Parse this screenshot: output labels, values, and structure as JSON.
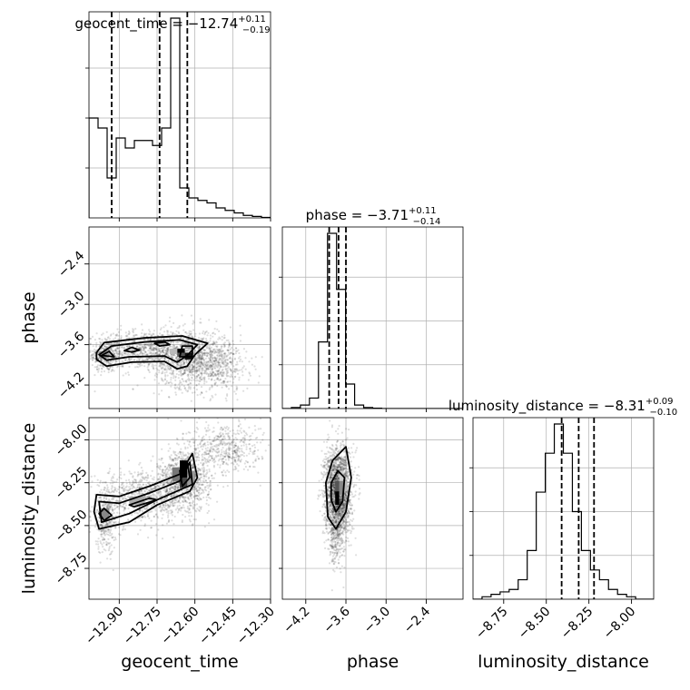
{
  "chart_data": {
    "type": "corner",
    "parameters": [
      "geocent_time",
      "phase",
      "luminosity_distance"
    ],
    "grid": true,
    "titles": [
      {
        "param": "geocent_time",
        "prefix": "geocent_time = ",
        "median": "−12.74",
        "plus": "+0.11",
        "minus": "−0.19"
      },
      {
        "param": "phase",
        "prefix": "phase = ",
        "median": "−3.71",
        "plus": "+0.11",
        "minus": "−0.14"
      },
      {
        "param": "luminosity_distance",
        "prefix": "luminosity_distance = ",
        "median": "−8.31",
        "plus": "+0.09",
        "minus": "−0.10"
      }
    ],
    "axes": {
      "geocent_time": {
        "range": [
          -13.02,
          -12.3
        ],
        "ticks": [
          -12.9,
          -12.75,
          -12.6,
          -12.45,
          -12.3
        ],
        "tick_labels": [
          "−12.90",
          "−12.75",
          "−12.60",
          "−12.45",
          "−12.30"
        ]
      },
      "phase": {
        "range": [
          -4.55,
          -1.85
        ],
        "ticks": [
          -4.2,
          -3.6,
          -3.0,
          -2.4
        ],
        "tick_labels": [
          "−4.2",
          "−3.6",
          "−3.0",
          "−2.4"
        ]
      },
      "luminosity_distance": {
        "range": [
          -8.93,
          -7.87
        ],
        "ticks": [
          -8.75,
          -8.5,
          -8.25,
          -8.0
        ],
        "tick_labels": [
          "−8.75",
          "−8.50",
          "−8.25",
          "−8.00"
        ]
      }
    },
    "histograms": {
      "geocent_time": {
        "edges": [
          -13.02,
          -12.984,
          -12.948,
          -12.912,
          -12.876,
          -12.84,
          -12.804,
          -12.768,
          -12.732,
          -12.696,
          -12.66,
          -12.624,
          -12.588,
          -12.552,
          -12.516,
          -12.48,
          -12.444,
          -12.408,
          -12.372,
          -12.336,
          -12.3
        ],
        "counts": [
          20,
          18,
          8,
          16,
          14,
          15.5,
          15.5,
          14.5,
          18,
          40,
          6,
          4,
          3.5,
          3,
          2,
          1.5,
          1,
          0.5,
          0.3,
          0.1
        ],
        "quantiles": [
          -12.93,
          -12.74,
          -12.63
        ]
      },
      "phase": {
        "edges": [
          -4.55,
          -4.415,
          -4.28,
          -4.145,
          -4.01,
          -3.875,
          -3.74,
          -3.605,
          -3.47,
          -3.335,
          -3.2,
          -3.065,
          -2.93,
          -2.795,
          -2.66,
          -2.525,
          -2.39,
          -2.255,
          -2.12,
          -1.985,
          -1.85
        ],
        "counts": [
          0,
          0.3,
          1,
          3,
          19,
          50,
          34,
          7,
          1,
          0.3,
          0.1,
          0,
          0,
          0,
          0,
          0,
          0,
          0,
          0,
          0
        ],
        "quantiles": [
          -3.85,
          -3.71,
          -3.6
        ]
      },
      "luminosity_distance": {
        "edges": [
          -8.93,
          -8.877,
          -8.824,
          -8.771,
          -8.718,
          -8.665,
          -8.612,
          -8.559,
          -8.506,
          -8.453,
          -8.4,
          -8.347,
          -8.294,
          -8.241,
          -8.188,
          -8.135,
          -8.082,
          -8.029,
          -7.976,
          -7.923,
          -7.87
        ],
        "counts": [
          0,
          0.5,
          1,
          1.5,
          2,
          4,
          10,
          22,
          30,
          36,
          30,
          18,
          10,
          6,
          4,
          2,
          1,
          0.5,
          0,
          0
        ],
        "quantiles": [
          -8.41,
          -8.31,
          -8.22
        ]
      }
    },
    "scatter_clouds": {
      "geocent_time_vs_phase": [
        {
          "cx": -12.95,
          "cy": -3.75,
          "sx": 0.03,
          "sy": 0.13,
          "n": 350
        },
        {
          "cx": -12.8,
          "cy": -3.68,
          "sx": 0.09,
          "sy": 0.15,
          "n": 700
        },
        {
          "cx": -12.62,
          "cy": -3.8,
          "sx": 0.07,
          "sy": 0.22,
          "n": 1000
        },
        {
          "cx": -12.5,
          "cy": -3.9,
          "sx": 0.06,
          "sy": 0.2,
          "n": 400
        }
      ],
      "geocent_time_vs_luminosity_distance": [
        {
          "cx": -12.95,
          "cy": -8.45,
          "sx": 0.03,
          "sy": 0.1,
          "n": 400
        },
        {
          "cx": -12.8,
          "cy": -8.33,
          "sx": 0.07,
          "sy": 0.07,
          "n": 650
        },
        {
          "cx": -12.64,
          "cy": -8.24,
          "sx": 0.05,
          "sy": 0.09,
          "n": 950
        },
        {
          "cx": -12.48,
          "cy": -8.05,
          "sx": 0.07,
          "sy": 0.08,
          "n": 500
        }
      ],
      "phase_vs_luminosity_distance": [
        {
          "cx": -3.72,
          "cy": -8.3,
          "sx": 0.1,
          "sy": 0.13,
          "n": 2000
        },
        {
          "cx": -3.75,
          "cy": -8.55,
          "sx": 0.06,
          "sy": 0.1,
          "n": 250
        }
      ]
    },
    "contours": {
      "geocent_time_vs_phase": [
        [
          [
            -12.99,
            -3.72
          ],
          [
            -12.96,
            -3.57
          ],
          [
            -12.8,
            -3.5
          ],
          [
            -12.65,
            -3.47
          ],
          [
            -12.55,
            -3.58
          ],
          [
            -12.6,
            -3.75
          ],
          [
            -12.63,
            -3.92
          ],
          [
            -12.67,
            -3.96
          ],
          [
            -12.72,
            -3.85
          ],
          [
            -12.85,
            -3.86
          ],
          [
            -12.95,
            -3.92
          ],
          [
            -12.99,
            -3.82
          ]
        ],
        [
          [
            -12.98,
            -3.75
          ],
          [
            -12.93,
            -3.62
          ],
          [
            -12.8,
            -3.56
          ],
          [
            -12.66,
            -3.53
          ],
          [
            -12.59,
            -3.6
          ],
          [
            -12.63,
            -3.76
          ],
          [
            -12.67,
            -3.86
          ],
          [
            -12.72,
            -3.77
          ],
          [
            -12.86,
            -3.78
          ],
          [
            -12.95,
            -3.83
          ]
        ],
        [
          [
            -12.97,
            -3.76
          ],
          [
            -12.94,
            -3.7
          ],
          [
            -12.92,
            -3.78
          ]
        ],
        [
          [
            -12.88,
            -3.69
          ],
          [
            -12.85,
            -3.64
          ],
          [
            -12.82,
            -3.68
          ],
          [
            -12.85,
            -3.71
          ]
        ],
        [
          [
            -12.76,
            -3.58
          ],
          [
            -12.72,
            -3.56
          ],
          [
            -12.7,
            -3.6
          ],
          [
            -12.74,
            -3.62
          ]
        ],
        [
          [
            -12.65,
            -3.62
          ],
          [
            -12.61,
            -3.62
          ],
          [
            -12.61,
            -3.78
          ],
          [
            -12.66,
            -3.78
          ]
        ]
      ],
      "geocent_time_vs_luminosity_distance": [
        [
          [
            -12.99,
            -8.32
          ],
          [
            -12.9,
            -8.33
          ],
          [
            -12.78,
            -8.27
          ],
          [
            -12.66,
            -8.2
          ],
          [
            -12.61,
            -8.08
          ],
          [
            -12.59,
            -8.22
          ],
          [
            -12.62,
            -8.3
          ],
          [
            -12.75,
            -8.38
          ],
          [
            -12.86,
            -8.48
          ],
          [
            -12.98,
            -8.52
          ],
          [
            -13.0,
            -8.42
          ]
        ],
        [
          [
            -12.98,
            -8.36
          ],
          [
            -12.9,
            -8.37
          ],
          [
            -12.78,
            -8.31
          ],
          [
            -12.66,
            -8.24
          ],
          [
            -12.62,
            -8.13
          ],
          [
            -12.61,
            -8.26
          ],
          [
            -12.75,
            -8.35
          ],
          [
            -12.86,
            -8.43
          ],
          [
            -12.97,
            -8.48
          ]
        ],
        [
          [
            -12.96,
            -8.4
          ],
          [
            -12.93,
            -8.44
          ],
          [
            -12.96,
            -8.47
          ],
          [
            -12.98,
            -8.43
          ]
        ],
        [
          [
            -12.86,
            -8.38
          ],
          [
            -12.78,
            -8.34
          ],
          [
            -12.75,
            -8.35
          ],
          [
            -12.84,
            -8.39
          ]
        ],
        [
          [
            -12.66,
            -8.18
          ],
          [
            -12.63,
            -8.13
          ],
          [
            -12.62,
            -8.22
          ],
          [
            -12.65,
            -8.27
          ]
        ]
      ],
      "phase_vs_luminosity_distance": [
        [
          [
            -3.9,
            -8.25
          ],
          [
            -3.8,
            -8.12
          ],
          [
            -3.6,
            -8.04
          ],
          [
            -3.52,
            -8.22
          ],
          [
            -3.6,
            -8.42
          ],
          [
            -3.75,
            -8.52
          ],
          [
            -3.87,
            -8.45
          ]
        ],
        [
          [
            -3.82,
            -8.25
          ],
          [
            -3.72,
            -8.18
          ],
          [
            -3.62,
            -8.22
          ],
          [
            -3.65,
            -8.36
          ],
          [
            -3.75,
            -8.42
          ],
          [
            -3.82,
            -8.35
          ]
        ]
      ]
    },
    "density_cells": {
      "geocent_time_vs_phase": [
        {
          "x": [
            -12.67,
            -12.64
          ],
          "y": [
            -3.72,
            -3.66
          ],
          "shade": "#000000"
        },
        {
          "x": [
            -12.64,
            -12.61
          ],
          "y": [
            -3.82,
            -3.72
          ],
          "shade": "#111111"
        },
        {
          "x": [
            -12.67,
            -12.64
          ],
          "y": [
            -3.78,
            -3.72
          ],
          "shade": "#555555"
        },
        {
          "x": [
            -12.7,
            -12.67
          ],
          "y": [
            -3.74,
            -3.66
          ],
          "shade": "#bbbbbb"
        },
        {
          "x": [
            -12.64,
            -12.61
          ],
          "y": [
            -3.66,
            -3.62
          ],
          "shade": "#999999"
        },
        {
          "x": [
            -12.98,
            -12.95
          ],
          "y": [
            -3.8,
            -3.7
          ],
          "shade": "#888888"
        },
        {
          "x": [
            -12.76,
            -12.72
          ],
          "y": [
            -3.6,
            -3.56
          ],
          "shade": "#aaaaaa"
        }
      ],
      "geocent_time_vs_luminosity_distance": [
        {
          "x": [
            -12.66,
            -12.63
          ],
          "y": [
            -8.22,
            -8.12
          ],
          "shade": "#000000"
        },
        {
          "x": [
            -12.66,
            -12.63
          ],
          "y": [
            -8.28,
            -8.22
          ],
          "shade": "#444444"
        },
        {
          "x": [
            -12.69,
            -12.66
          ],
          "y": [
            -8.24,
            -8.16
          ],
          "shade": "#777777"
        },
        {
          "x": [
            -12.63,
            -12.6
          ],
          "y": [
            -8.26,
            -8.18
          ],
          "shade": "#999999"
        },
        {
          "x": [
            -12.86,
            -12.8
          ],
          "y": [
            -8.38,
            -8.33
          ],
          "shade": "#aaaaaa"
        },
        {
          "x": [
            -12.98,
            -12.94
          ],
          "y": [
            -8.46,
            -8.4
          ],
          "shade": "#888888"
        }
      ],
      "phase_vs_luminosity_distance": [
        {
          "x": [
            -3.76,
            -3.7
          ],
          "y": [
            -8.38,
            -8.3
          ],
          "shade": "#000000"
        },
        {
          "x": [
            -3.76,
            -3.7
          ],
          "y": [
            -8.3,
            -8.24
          ],
          "shade": "#555555"
        },
        {
          "x": [
            -3.7,
            -3.64
          ],
          "y": [
            -8.32,
            -8.24
          ],
          "shade": "#888888"
        },
        {
          "x": [
            -3.64,
            -3.58
          ],
          "y": [
            -8.3,
            -8.24
          ],
          "shade": "#bbbbbb"
        },
        {
          "x": [
            -3.7,
            -3.64
          ],
          "y": [
            -8.24,
            -8.18
          ],
          "shade": "#cccccc"
        }
      ]
    }
  }
}
